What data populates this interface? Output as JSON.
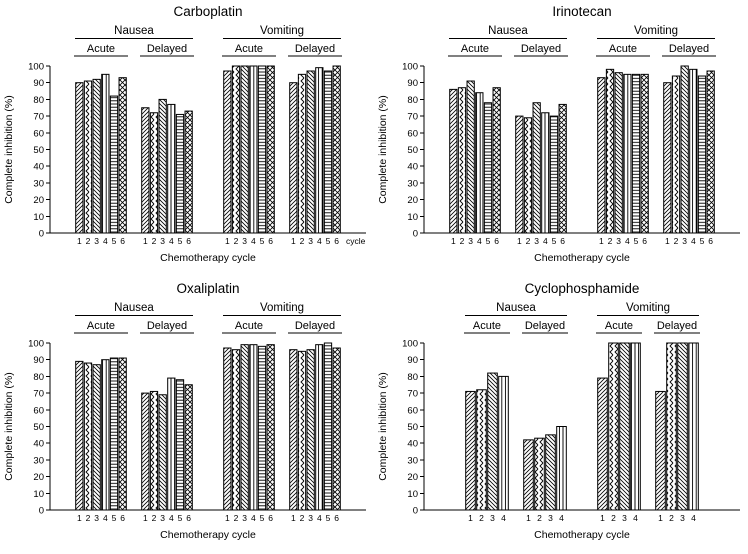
{
  "figure": {
    "ylabel": "Complete inhibition (%)",
    "xlabel": "Chemotherapy cycle",
    "ylim": [
      0,
      100
    ],
    "ytick_step": 10,
    "colors": {
      "ink": "#000000",
      "background": "#ffffff"
    },
    "pattern_legend_by_cycle": [
      "diagonal-up-hatch",
      "chevron-hatch",
      "diagonal-down-hatch",
      "vertical-hatch",
      "horizontal-hatch",
      "crosshatch"
    ]
  },
  "chart_data": [
    {
      "type": "bar",
      "title": "Carboplatin",
      "cycles": [
        "1",
        "2",
        "3",
        "4",
        "5",
        "6"
      ],
      "x_unit_label": "cycle",
      "xlabel": "Chemotherapy cycle",
      "ylabel": "Complete inhibition (%)",
      "groups": [
        {
          "symptom": "Nausea",
          "phase": "Acute",
          "values": [
            90,
            91,
            92,
            95,
            82,
            93
          ]
        },
        {
          "symptom": "Nausea",
          "phase": "Delayed",
          "values": [
            75,
            72,
            80,
            77,
            71,
            73
          ]
        },
        {
          "symptom": "Vomiting",
          "phase": "Acute",
          "values": [
            97,
            100,
            100,
            100,
            100,
            100
          ]
        },
        {
          "symptom": "Vomiting",
          "phase": "Delayed",
          "values": [
            90,
            95,
            97,
            99,
            97,
            100
          ]
        }
      ]
    },
    {
      "type": "bar",
      "title": "Irinotecan",
      "cycles": [
        "1",
        "2",
        "3",
        "4",
        "5",
        "6"
      ],
      "x_unit_label": "",
      "xlabel": "Chemotherapy cycle",
      "ylabel": "Complete inhibition (%)",
      "groups": [
        {
          "symptom": "Nausea",
          "phase": "Acute",
          "values": [
            86,
            87,
            91,
            84,
            78,
            87
          ]
        },
        {
          "symptom": "Nausea",
          "phase": "Delayed",
          "values": [
            70,
            69,
            78,
            72,
            70,
            77
          ]
        },
        {
          "symptom": "Vomiting",
          "phase": "Acute",
          "values": [
            93,
            98,
            96,
            95,
            95,
            95
          ]
        },
        {
          "symptom": "Vomiting",
          "phase": "Delayed",
          "values": [
            90,
            94,
            100,
            98,
            94,
            97
          ]
        }
      ]
    },
    {
      "type": "bar",
      "title": "Oxaliplatin",
      "cycles": [
        "1",
        "2",
        "3",
        "4",
        "5",
        "6"
      ],
      "x_unit_label": "",
      "xlabel": "Chemotherapy cycle",
      "ylabel": "Complete inhibition (%)",
      "groups": [
        {
          "symptom": "Nausea",
          "phase": "Acute",
          "values": [
            89,
            88,
            87,
            90,
            91,
            91
          ]
        },
        {
          "symptom": "Nausea",
          "phase": "Delayed",
          "values": [
            70,
            71,
            69,
            79,
            78,
            75
          ]
        },
        {
          "symptom": "Vomiting",
          "phase": "Acute",
          "values": [
            97,
            96,
            99,
            99,
            98,
            99
          ]
        },
        {
          "symptom": "Vomiting",
          "phase": "Delayed",
          "values": [
            96,
            95,
            96,
            99,
            100,
            97
          ]
        }
      ]
    },
    {
      "type": "bar",
      "title": "Cyclophosphamide",
      "cycles": [
        "1",
        "2",
        "3",
        "4"
      ],
      "x_unit_label": "",
      "xlabel": "Chemotherapy cycle",
      "ylabel": "Complete inhibition (%)",
      "groups": [
        {
          "symptom": "Nausea",
          "phase": "Acute",
          "values": [
            71,
            72,
            82,
            80
          ]
        },
        {
          "symptom": "Nausea",
          "phase": "Delayed",
          "values": [
            42,
            43,
            45,
            50
          ]
        },
        {
          "symptom": "Vomiting",
          "phase": "Acute",
          "values": [
            79,
            100,
            100,
            100
          ]
        },
        {
          "symptom": "Vomiting",
          "phase": "Delayed",
          "values": [
            71,
            100,
            100,
            100
          ]
        }
      ]
    }
  ]
}
